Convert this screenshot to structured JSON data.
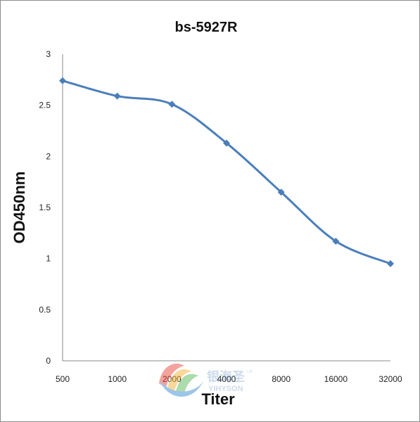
{
  "chart_data": {
    "type": "line",
    "title": "bs-5927R",
    "xlabel": "Titer",
    "ylabel": "OD450nm",
    "categories": [
      "500",
      "1000",
      "2000",
      "4000",
      "8000",
      "16000",
      "32000"
    ],
    "series": [
      {
        "values": [
          2.74,
          2.59,
          2.51,
          2.13,
          1.65,
          1.17,
          0.95
        ],
        "color": "#4a7ebb"
      }
    ],
    "ylim": [
      0,
      3
    ],
    "yticks": [
      "0",
      "0.5",
      "1",
      "1.5",
      "2",
      "2.5",
      "3"
    ],
    "grid": false,
    "marker": "diamond"
  },
  "watermark": {
    "brand_cn": "银海圣",
    "brand_en": "YIHYSON",
    "trademark": "TM",
    "logo_colors": [
      "#e8473c",
      "#f4b23c",
      "#5cb85c",
      "#3c8dd4"
    ]
  }
}
